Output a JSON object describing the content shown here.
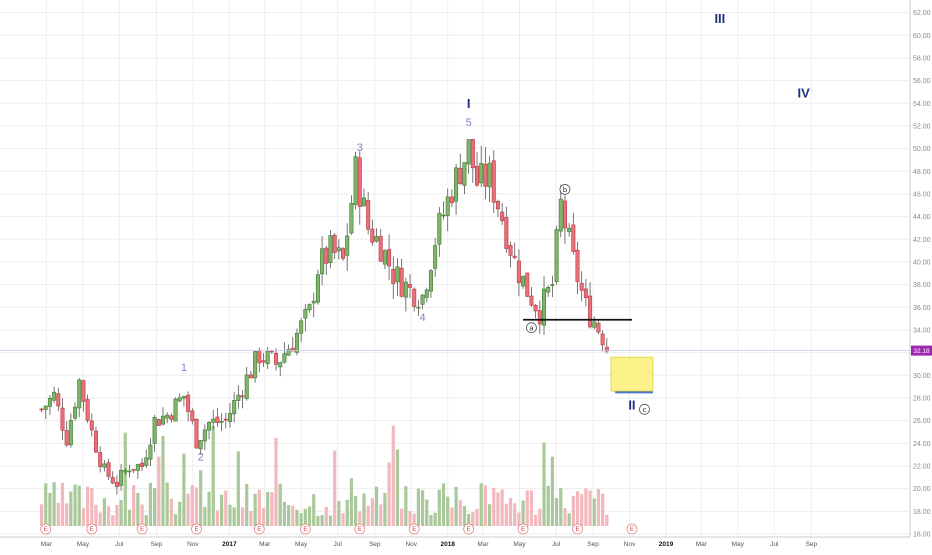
{
  "chart_data": {
    "type": "candlestick",
    "title": "",
    "xlabel": "",
    "ylabel": "",
    "ylim": [
      14,
      64
    ],
    "y_ticks": [
      "16.00",
      "18.00",
      "20.00",
      "22.00",
      "24.00",
      "26.00",
      "28.00",
      "30.00",
      "32.00",
      "34.00",
      "36.00",
      "38.00",
      "40.00",
      "42.00",
      "44.00",
      "46.00",
      "48.00",
      "50.00",
      "52.00",
      "54.00",
      "56.00",
      "58.00",
      "60.00",
      "62.00"
    ],
    "x_ticks": [
      {
        "label": "Mar",
        "bold": false
      },
      {
        "label": "May",
        "bold": false
      },
      {
        "label": "Jul",
        "bold": false
      },
      {
        "label": "Sep",
        "bold": false
      },
      {
        "label": "Nov",
        "bold": false
      },
      {
        "label": "2017",
        "bold": true
      },
      {
        "label": "Mar",
        "bold": false
      },
      {
        "label": "May",
        "bold": false
      },
      {
        "label": "Jul",
        "bold": false
      },
      {
        "label": "Sep",
        "bold": false
      },
      {
        "label": "Nov",
        "bold": false
      },
      {
        "label": "2018",
        "bold": true
      },
      {
        "label": "Mar",
        "bold": false
      },
      {
        "label": "May",
        "bold": false
      },
      {
        "label": "Jul",
        "bold": false
      },
      {
        "label": "Sep",
        "bold": false
      },
      {
        "label": "Nov",
        "bold": false
      },
      {
        "label": "2019",
        "bold": true
      },
      {
        "label": "Mar",
        "bold": false
      },
      {
        "label": "May",
        "bold": false
      },
      {
        "label": "Jul",
        "bold": false
      },
      {
        "label": "Sep",
        "bold": false
      }
    ],
    "price_path": [
      {
        "date": "2016-02-22",
        "close": 27.0
      },
      {
        "date": "2016-03-14",
        "close": 28.2
      },
      {
        "date": "2016-04-04",
        "close": 24.5
      },
      {
        "date": "2016-04-25",
        "close": 29.5
      },
      {
        "date": "2016-05-16",
        "close": 25.0
      },
      {
        "date": "2016-06-06",
        "close": 21.5
      },
      {
        "date": "2016-06-27",
        "close": 20.5
      },
      {
        "date": "2016-07-18",
        "close": 22.0
      },
      {
        "date": "2016-08-08",
        "close": 22.0
      },
      {
        "date": "2016-08-29",
        "close": 26.0
      },
      {
        "date": "2016-09-19",
        "close": 26.5
      },
      {
        "date": "2016-10-17",
        "close": 28.2
      },
      {
        "date": "2016-11-07",
        "close": 24.3
      },
      {
        "date": "2016-11-28",
        "close": 25.8
      },
      {
        "date": "2016-12-26",
        "close": 26.0
      },
      {
        "date": "2017-01-23",
        "close": 29.0
      },
      {
        "date": "2017-02-20",
        "close": 31.8
      },
      {
        "date": "2017-03-20",
        "close": 31.0
      },
      {
        "date": "2017-04-17",
        "close": 33.0
      },
      {
        "date": "2017-05-15",
        "close": 35.5
      },
      {
        "date": "2017-05-29",
        "close": 39.5
      },
      {
        "date": "2017-06-19",
        "close": 41.0
      },
      {
        "date": "2017-07-10",
        "close": 40.0
      },
      {
        "date": "2017-07-31",
        "close": 48.0
      },
      {
        "date": "2017-08-21",
        "close": 43.0
      },
      {
        "date": "2017-09-11",
        "close": 41.5
      },
      {
        "date": "2017-10-02",
        "close": 39.0
      },
      {
        "date": "2017-10-30",
        "close": 37.5
      },
      {
        "date": "2017-11-20",
        "close": 37.0
      },
      {
        "date": "2017-12-11",
        "close": 42.0
      },
      {
        "date": "2018-01-08",
        "close": 46.5
      },
      {
        "date": "2018-02-05",
        "close": 50.0
      },
      {
        "date": "2018-02-19",
        "close": 47.0
      },
      {
        "date": "2018-03-12",
        "close": 47.5
      },
      {
        "date": "2018-04-02",
        "close": 44.0
      },
      {
        "date": "2018-04-23",
        "close": 40.0
      },
      {
        "date": "2018-05-14",
        "close": 37.5
      },
      {
        "date": "2018-06-04",
        "close": 35.7
      },
      {
        "date": "2018-06-25",
        "close": 38.0
      },
      {
        "date": "2018-07-09",
        "close": 45.0
      },
      {
        "date": "2018-07-30",
        "close": 40.0
      },
      {
        "date": "2018-08-20",
        "close": 36.0
      },
      {
        "date": "2018-09-03",
        "close": 34.8
      },
      {
        "date": "2018-09-17",
        "close": 33.5
      },
      {
        "date": "2018-09-24",
        "close": 32.5
      }
    ],
    "current_price": "32.18",
    "support_line": {
      "value": 34.9,
      "from": "2018-05-07",
      "to": "2018-11-05"
    },
    "target_zone": {
      "from": "2018-10-01",
      "to": "2018-12-10",
      "low": 28.6,
      "high": 31.6
    },
    "target_line": {
      "value": 28.5,
      "from": "2018-10-08",
      "to": "2018-12-10"
    },
    "wave_labels": [
      {
        "text": "1",
        "date": "2016-10-17",
        "price": 30.4,
        "style": "small"
      },
      {
        "text": "2",
        "date": "2016-11-14",
        "price": 22.5,
        "style": "small"
      },
      {
        "text": "3",
        "date": "2017-08-07",
        "price": 49.8,
        "style": "small"
      },
      {
        "text": "4",
        "date": "2017-11-20",
        "price": 34.8,
        "style": "small"
      },
      {
        "text": "5",
        "date": "2018-02-05",
        "price": 52.0,
        "style": "small"
      },
      {
        "text": "I",
        "date": "2018-02-05",
        "price": 53.6,
        "style": "big"
      },
      {
        "text": "II",
        "date": "2018-11-05",
        "price": 27.0,
        "style": "big"
      },
      {
        "text": "III",
        "date": "2019-04-01",
        "price": 61.1,
        "style": "big"
      },
      {
        "text": "IV",
        "date": "2019-08-19",
        "price": 54.5,
        "style": "big"
      }
    ],
    "circle_labels": [
      {
        "text": "a",
        "date": "2018-05-21",
        "price": 34.2
      },
      {
        "text": "b",
        "date": "2018-07-16",
        "price": 46.4
      },
      {
        "text": "c",
        "date": "2018-11-26",
        "price": 27.0
      }
    ],
    "earnings_markers": {
      "label": "E",
      "dates": [
        "2016-02-29",
        "2016-05-16",
        "2016-08-08",
        "2016-11-07",
        "2017-02-20",
        "2017-05-08",
        "2017-08-07",
        "2017-11-06",
        "2018-02-05",
        "2018-05-07",
        "2018-08-06",
        "2018-11-05"
      ]
    }
  }
}
